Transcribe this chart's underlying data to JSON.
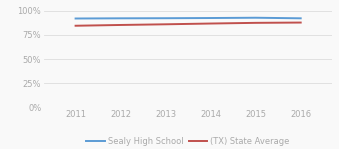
{
  "years": [
    2011,
    2012,
    2013,
    2014,
    2015,
    2016
  ],
  "sealy": [
    0.92,
    0.922,
    0.923,
    0.925,
    0.928,
    0.922
  ],
  "state": [
    0.845,
    0.853,
    0.86,
    0.868,
    0.875,
    0.878
  ],
  "sealy_color": "#5b9bd5",
  "state_color": "#c0504d",
  "background_color": "#f9f9f9",
  "grid_color": "#dddddd",
  "tick_label_color": "#aaaaaa",
  "legend_label_sealy": "Sealy High School",
  "legend_label_state": "(TX) State Average",
  "ylim": [
    0.0,
    1.05
  ],
  "yticks": [
    0.0,
    0.25,
    0.5,
    0.75,
    1.0
  ],
  "ytick_labels": [
    "0%",
    "25%",
    "50%",
    "75%",
    "100%"
  ],
  "xticks": [
    2011,
    2012,
    2013,
    2014,
    2015,
    2016
  ],
  "xlim": [
    2010.3,
    2016.7
  ],
  "line_width": 1.4,
  "legend_fontsize": 6.0,
  "tick_fontsize": 6.0
}
